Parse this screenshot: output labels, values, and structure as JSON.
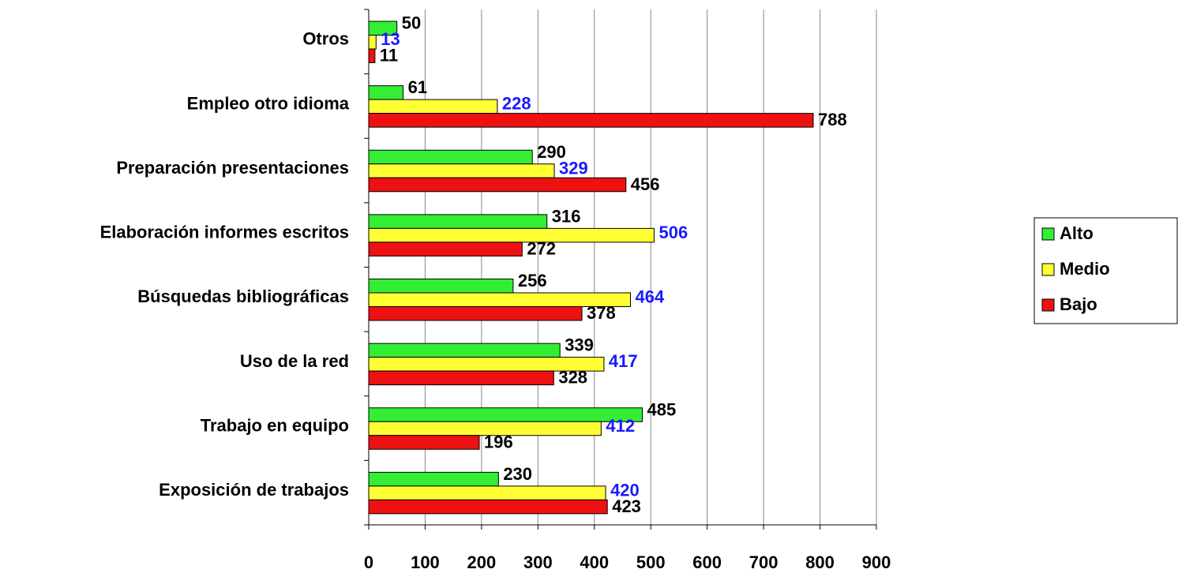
{
  "chart_data": {
    "type": "barh",
    "categories": [
      "Otros",
      "Empleo otro idioma",
      "Preparación presentaciones",
      "Elaboración informes escritos",
      "Búsquedas bibliográficas",
      "Uso de la red",
      "Trabajo en equipo",
      "Exposición de trabajos"
    ],
    "series": [
      {
        "name": "Alto",
        "color": "#33ee33",
        "label_color": "#000000",
        "values": [
          50,
          61,
          290,
          316,
          256,
          339,
          485,
          230
        ]
      },
      {
        "name": "Medio",
        "color": "#ffff33",
        "label_color": "#1a1aff",
        "values": [
          13,
          228,
          329,
          506,
          464,
          417,
          412,
          420
        ]
      },
      {
        "name": "Bajo",
        "color": "#ee1111",
        "label_color": "#000000",
        "values": [
          11,
          788,
          456,
          272,
          378,
          328,
          196,
          423
        ]
      }
    ],
    "xlim": [
      0,
      900
    ],
    "xticks": [
      0,
      100,
      200,
      300,
      400,
      500,
      600,
      700,
      800,
      900
    ],
    "grid": true,
    "legend": "right"
  }
}
